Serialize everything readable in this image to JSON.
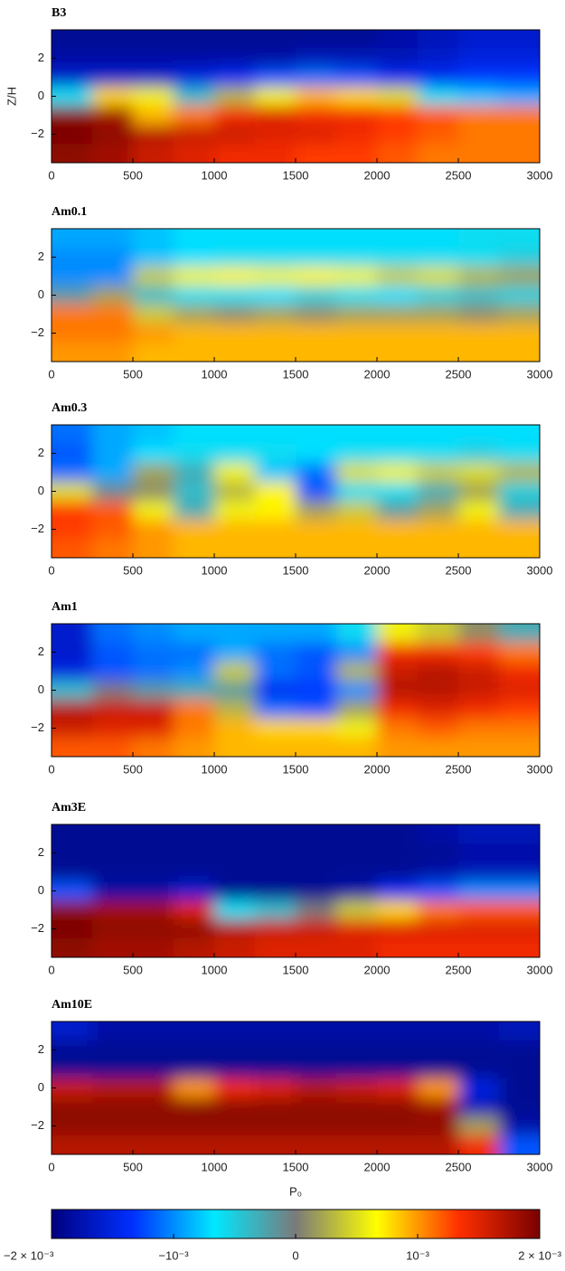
{
  "chart_data": [
    {
      "type": "heatmap",
      "title": "B3",
      "ylabel": "Z/H",
      "x": [
        125,
        375,
        625,
        875,
        1125,
        1375,
        1625,
        1875,
        2125,
        2375,
        2625,
        2875
      ],
      "y": [
        3,
        2,
        1,
        0,
        -1,
        -2,
        -3
      ],
      "z": [
        [
          -0.0019,
          -0.0019,
          -0.0019,
          -0.0019,
          -0.0019,
          -0.0019,
          -0.0019,
          -0.0019,
          -0.0018,
          -0.0017,
          -0.0016,
          -0.0016
        ],
        [
          -0.0018,
          -0.0018,
          -0.0018,
          -0.0018,
          -0.0018,
          -0.0018,
          -0.0017,
          -0.0017,
          -0.0017,
          -0.0016,
          -0.0015,
          -0.0015
        ],
        [
          -0.0016,
          -0.0016,
          -0.0016,
          -0.0015,
          -0.0014,
          -0.0012,
          -0.0011,
          -0.0012,
          -0.0014,
          -0.0014,
          -0.0013,
          -0.0013
        ],
        [
          -0.0006,
          0.0008,
          0.0006,
          -0.0004,
          0.0003,
          0.0006,
          0.0009,
          0.0008,
          0.0005,
          -0.0006,
          -0.0008,
          -0.0009
        ],
        [
          0.0019,
          0.0018,
          0.0009,
          0.0011,
          0.0014,
          0.0015,
          0.0014,
          0.0014,
          0.0013,
          0.0012,
          0.0011,
          0.0011
        ],
        [
          0.002,
          0.0019,
          0.0017,
          0.0016,
          0.0016,
          0.0015,
          0.0015,
          0.0014,
          0.0013,
          0.0012,
          0.0011,
          0.0011
        ],
        [
          0.0019,
          0.0018,
          0.0016,
          0.0015,
          0.0014,
          0.0014,
          0.0013,
          0.0013,
          0.0012,
          0.0011,
          0.0011,
          0.0011
        ]
      ],
      "xlim": [
        0,
        3000
      ],
      "xticks": [
        0,
        500,
        1000,
        1500,
        2000,
        2500,
        3000
      ],
      "ylim": [
        -3.5,
        3.5
      ],
      "yticks": [
        {
          "value": -2,
          "label": "−2"
        },
        0,
        2
      ]
    },
    {
      "type": "heatmap",
      "title": "Am0.1",
      "x": [
        125,
        375,
        625,
        875,
        1125,
        1375,
        1625,
        1875,
        2125,
        2375,
        2625,
        2875
      ],
      "y": [
        3,
        2,
        1,
        0,
        -1,
        -2,
        -3
      ],
      "z": [
        [
          -0.0009,
          -0.0009,
          -0.0008,
          -0.0007,
          -0.0007,
          -0.0007,
          -0.0007,
          -0.0007,
          -0.0007,
          -0.0007,
          -0.0006,
          -0.0006
        ],
        [
          -0.001,
          -0.001,
          -0.0008,
          -0.0007,
          -0.0006,
          -0.0006,
          -0.0006,
          -0.0006,
          -0.0006,
          -0.0006,
          -0.0006,
          -0.0005
        ],
        [
          -0.001,
          -0.001,
          0.0004,
          0.0006,
          0.0007,
          0.0006,
          0.0007,
          0.0006,
          0.0004,
          0.0005,
          0.0003,
          0.0002
        ],
        [
          -0.0002,
          0.0002,
          -0.0004,
          -0.0006,
          -0.0006,
          -0.0007,
          -0.0005,
          -0.0006,
          -0.0007,
          -0.0005,
          -0.0004,
          -0.0005
        ],
        [
          0.0011,
          0.0011,
          0.0004,
          0.0002,
          0.0001,
          0.0002,
          0.0001,
          0.0002,
          0.0002,
          0.0002,
          0.0001,
          0.0002
        ],
        [
          0.0011,
          0.0011,
          0.001,
          0.0009,
          0.0009,
          0.0009,
          0.0009,
          0.0009,
          0.0009,
          0.0009,
          0.0009,
          0.0009
        ],
        [
          0.001,
          0.001,
          0.0009,
          0.0009,
          0.0009,
          0.0009,
          0.0009,
          0.0009,
          0.0009,
          0.0009,
          0.0009,
          0.0009
        ]
      ],
      "xlim": [
        0,
        3000
      ],
      "xticks": [
        0,
        500,
        1000,
        1500,
        2000,
        2500,
        3000
      ],
      "ylim": [
        -3.5,
        3.5
      ],
      "yticks": [
        {
          "value": -2,
          "label": "−2"
        },
        0,
        2
      ]
    },
    {
      "type": "heatmap",
      "title": "Am0.3",
      "x": [
        125,
        375,
        625,
        875,
        1125,
        1375,
        1625,
        1875,
        2125,
        2375,
        2625,
        2875
      ],
      "y": [
        3,
        2,
        1,
        0,
        -1,
        -2,
        -3
      ],
      "z": [
        [
          -0.0011,
          -0.0009,
          -0.0008,
          -0.0007,
          -0.0007,
          -0.0007,
          -0.0007,
          -0.0007,
          -0.0007,
          -0.0007,
          -0.0007,
          -0.0007
        ],
        [
          -0.0012,
          -0.0009,
          -0.0007,
          -0.0006,
          -0.0006,
          -0.0006,
          -0.0007,
          -0.0006,
          -0.0006,
          -0.0006,
          -0.0005,
          -0.0006
        ],
        [
          -0.0011,
          -0.0009,
          0.0002,
          -0.0003,
          0.0006,
          -0.0008,
          -0.0011,
          0.0005,
          0.0006,
          0.0004,
          0.0005,
          0.0003
        ],
        [
          0.0005,
          -0.0001,
          0.0001,
          -0.0004,
          0.0003,
          0.0007,
          -0.0012,
          -0.0006,
          -0.0006,
          -0.0003,
          0.0002,
          -0.0005
        ],
        [
          0.0013,
          0.0012,
          0.0006,
          -0.0003,
          0.0006,
          0.0007,
          0.0002,
          0.0004,
          -0.0002,
          0.0002,
          0.0006,
          -0.0003
        ],
        [
          0.0013,
          0.0012,
          0.001,
          0.0009,
          0.0009,
          0.0009,
          0.0009,
          0.0009,
          0.0009,
          0.0009,
          0.0009,
          0.0009
        ],
        [
          0.0012,
          0.0011,
          0.001,
          0.0009,
          0.0009,
          0.0009,
          0.0009,
          0.0009,
          0.0009,
          0.0009,
          0.0009,
          0.0009
        ]
      ],
      "xlim": [
        0,
        3000
      ],
      "xticks": [
        0,
        500,
        1000,
        1500,
        2000,
        2500,
        3000
      ],
      "ylim": [
        -3.5,
        3.5
      ],
      "yticks": [
        {
          "value": -2,
          "label": "−2"
        },
        0,
        2
      ]
    },
    {
      "type": "heatmap",
      "title": "Am1",
      "x": [
        125,
        375,
        625,
        875,
        1125,
        1375,
        1625,
        1875,
        2125,
        2375,
        2625,
        2875
      ],
      "y": [
        3,
        2,
        1,
        0,
        -1,
        -2,
        -3
      ],
      "z": [
        [
          -0.0016,
          -0.0011,
          -0.001,
          -0.0009,
          -0.0009,
          -0.0009,
          -0.0009,
          -0.0006,
          0.0006,
          0.0004,
          0.0001,
          -0.0003
        ],
        [
          -0.0016,
          -0.0012,
          -0.0011,
          -0.0011,
          -0.0009,
          -0.0011,
          -0.0012,
          -0.001,
          0.0014,
          0.0014,
          0.0013,
          0.0011
        ],
        [
          -0.0015,
          -0.0012,
          -0.0011,
          -0.001,
          0.0004,
          -0.0011,
          -0.0012,
          0.0003,
          0.0016,
          0.0017,
          0.0016,
          0.0014
        ],
        [
          -0.0004,
          0,
          -0.0002,
          -0.0003,
          -0.0002,
          -0.0014,
          -0.0013,
          -0.001,
          0.0017,
          0.0017,
          0.0016,
          0.0015
        ],
        [
          0.0017,
          0.0016,
          0.0016,
          0.0011,
          0.0003,
          -0.0011,
          -0.0012,
          0.0002,
          0.0014,
          0.0015,
          0.0014,
          0.0013
        ],
        [
          0.0016,
          0.0015,
          0.0015,
          0.0011,
          0.0009,
          0.0008,
          0.0008,
          0.0006,
          0.0011,
          0.0012,
          0.0011,
          0.0011
        ],
        [
          0.0012,
          0.0012,
          0.0011,
          0.001,
          0.0009,
          0.0009,
          0.0009,
          0.0009,
          0.001,
          0.001,
          0.001,
          0.001
        ]
      ],
      "xlim": [
        0,
        3000
      ],
      "xticks": [
        0,
        500,
        1000,
        1500,
        2000,
        2500,
        3000
      ],
      "ylim": [
        -3.5,
        3.5
      ],
      "yticks": [
        {
          "value": -2,
          "label": "−2"
        },
        0,
        2
      ]
    },
    {
      "type": "heatmap",
      "title": "Am3E",
      "x": [
        125,
        375,
        625,
        875,
        1125,
        1375,
        1625,
        1875,
        2125,
        2375,
        2625,
        2875
      ],
      "y": [
        3,
        2,
        1,
        0,
        -1,
        -2,
        -3
      ],
      "z": [
        [
          -0.0019,
          -0.0019,
          -0.0019,
          -0.0019,
          -0.0019,
          -0.0019,
          -0.0019,
          -0.0019,
          -0.0019,
          -0.0018,
          -0.0017,
          -0.0017
        ],
        [
          -0.0019,
          -0.0019,
          -0.0019,
          -0.0019,
          -0.0019,
          -0.0019,
          -0.0019,
          -0.0019,
          -0.0019,
          -0.0019,
          -0.0018,
          -0.0018
        ],
        [
          -0.0019,
          -0.0019,
          -0.0019,
          -0.0019,
          -0.0019,
          -0.0019,
          -0.0019,
          -0.0019,
          -0.0019,
          -0.0018,
          -0.0017,
          -0.0017
        ],
        [
          -0.0012,
          -0.0018,
          -0.0018,
          -0.0016,
          -0.0019,
          -0.0019,
          -0.0019,
          -0.0018,
          -0.0014,
          -0.0012,
          -0.001,
          -0.001
        ],
        [
          0.0019,
          0.0018,
          0.0018,
          0.0015,
          -0.0006,
          -0.0004,
          0,
          0.0004,
          0.0008,
          0.0011,
          0.0012,
          0.0012
        ],
        [
          0.002,
          0.0019,
          0.0019,
          0.0019,
          0.0017,
          0.0016,
          0.0016,
          0.0015,
          0.0015,
          0.0015,
          0.0015,
          0.0015
        ],
        [
          0.0019,
          0.0018,
          0.0018,
          0.0017,
          0.0016,
          0.0015,
          0.0015,
          0.0015,
          0.0014,
          0.0014,
          0.0014,
          0.0014
        ]
      ],
      "xlim": [
        0,
        3000
      ],
      "xticks": [
        0,
        500,
        1000,
        1500,
        2000,
        2500,
        3000
      ],
      "ylim": [
        -3.5,
        3.5
      ],
      "yticks": [
        {
          "value": -2,
          "label": "−2"
        },
        0,
        2
      ]
    },
    {
      "type": "heatmap",
      "title": "Am10E",
      "xlabel": "P₀",
      "x": [
        125,
        375,
        625,
        875,
        1125,
        1375,
        1625,
        1875,
        2125,
        2375,
        2625,
        2875
      ],
      "y": [
        3,
        2,
        1,
        0,
        -1,
        -2,
        -3
      ],
      "z": [
        [
          -0.0016,
          -0.0018,
          -0.0018,
          -0.0018,
          -0.0018,
          -0.0018,
          -0.0018,
          -0.0018,
          -0.0018,
          -0.0018,
          -0.0018,
          -0.0017
        ],
        [
          -0.0019,
          -0.0019,
          -0.0019,
          -0.0019,
          -0.0019,
          -0.0019,
          -0.0019,
          -0.0019,
          -0.0019,
          -0.0019,
          -0.0019,
          -0.0019
        ],
        [
          -0.0019,
          -0.0019,
          -0.0019,
          -0.0019,
          -0.0019,
          -0.0019,
          -0.0019,
          -0.0019,
          -0.0019,
          -0.0019,
          -0.0019,
          -0.0019
        ],
        [
          0.0016,
          0.0017,
          0.0017,
          0.001,
          0.0014,
          0.0015,
          0.0017,
          0.0016,
          0.0015,
          0.001,
          -0.0015,
          -0.0019
        ],
        [
          0.0019,
          0.0019,
          0.0019,
          0.0019,
          0.0019,
          0.0019,
          0.0019,
          0.0019,
          0.0019,
          0.0018,
          -0.0017,
          -0.0019
        ],
        [
          0.0019,
          0.0019,
          0.0019,
          0.0019,
          0.0019,
          0.0019,
          0.0019,
          0.0019,
          0.0019,
          0.0019,
          0.0002,
          -0.0018
        ],
        [
          0.0017,
          0.0017,
          0.0017,
          0.0017,
          0.0017,
          0.0017,
          0.0017,
          0.0017,
          0.0017,
          0.0017,
          0.0014,
          -0.0012
        ]
      ],
      "xlim": [
        0,
        3000
      ],
      "xticks": [
        0,
        500,
        1000,
        1500,
        2000,
        2500,
        3000
      ],
      "ylim": [
        -3.5,
        3.5
      ],
      "yticks": [
        {
          "value": -2,
          "label": "−2"
        },
        0,
        2
      ]
    }
  ],
  "colorbar": {
    "zlim": [
      -0.002,
      0.002
    ],
    "zticks": [
      {
        "value": -0.002,
        "label": "−2 × 10⁻³"
      },
      {
        "value": -0.001,
        "label": "−10⁻³"
      },
      0,
      {
        "value": 0.001,
        "label": "10⁻³"
      },
      {
        "value": 0.002,
        "label": "2 × 10⁻³"
      }
    ],
    "colorscale": [
      "#000080",
      "#0030ff",
      "#00e8ff",
      "#7a7a7a",
      "#ffff00",
      "#ff3000",
      "#7a0000"
    ]
  }
}
